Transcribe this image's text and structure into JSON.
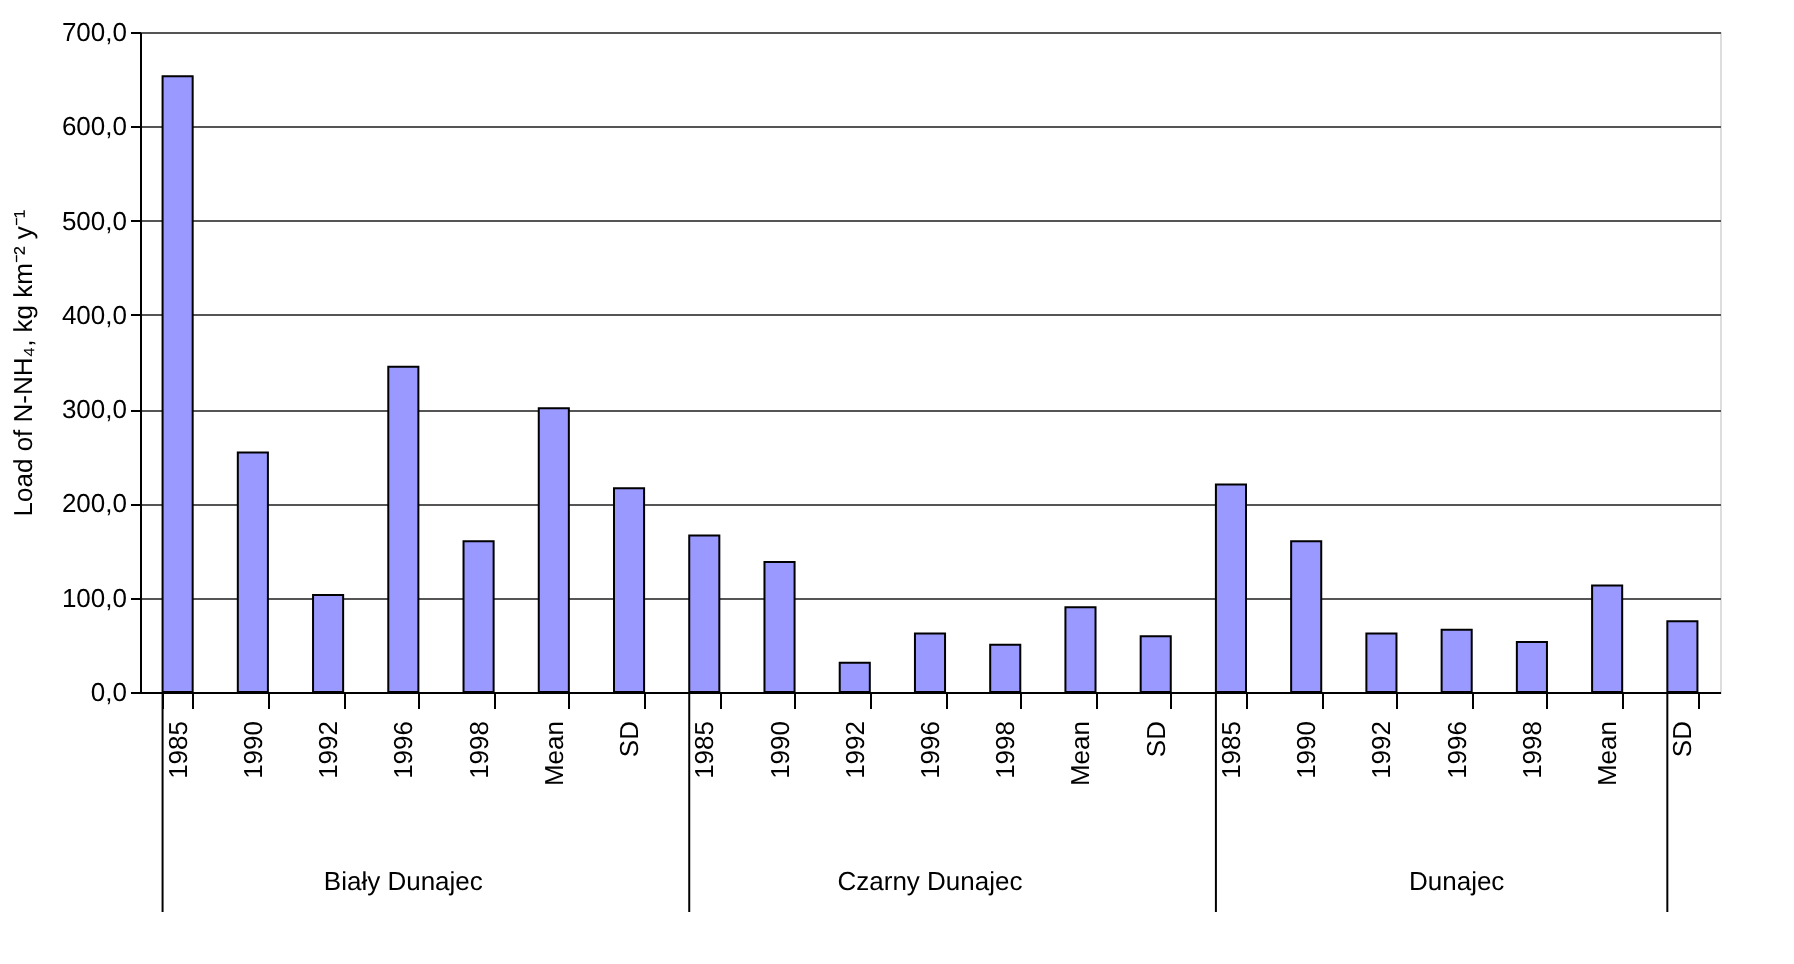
{
  "chart_data": {
    "type": "bar",
    "ylabel": "Load of N-NH₄, kg km⁻² y⁻¹",
    "categories": [
      "1985",
      "1990",
      "1992",
      "1996",
      "1998",
      "Mean",
      "SD",
      "1985",
      "1990",
      "1992",
      "1996",
      "1998",
      "Mean",
      "SD",
      "1985",
      "1990",
      "1992",
      "1996",
      "1998",
      "Mean",
      "SD"
    ],
    "values": [
      653,
      254,
      103,
      345,
      160,
      301,
      216,
      166,
      138,
      31,
      62,
      50,
      90,
      59,
      220,
      160,
      62,
      66,
      53,
      113,
      75
    ],
    "color": "#9999ff",
    "ylim": [
      0,
      700
    ],
    "yticks": [
      {
        "value": 0,
        "label": "0,0"
      },
      {
        "value": 100,
        "label": "100,0"
      },
      {
        "value": 200,
        "label": "200,0"
      },
      {
        "value": 300,
        "label": "300,0"
      },
      {
        "value": 400,
        "label": "400,0"
      },
      {
        "value": 500,
        "label": "500,0"
      },
      {
        "value": 600,
        "label": "600,0"
      },
      {
        "value": 700,
        "label": "700,0"
      }
    ],
    "grid": "y",
    "annotations": [
      "Biały Dunajec",
      "Czarny Dunajec",
      "Dunajec"
    ]
  }
}
